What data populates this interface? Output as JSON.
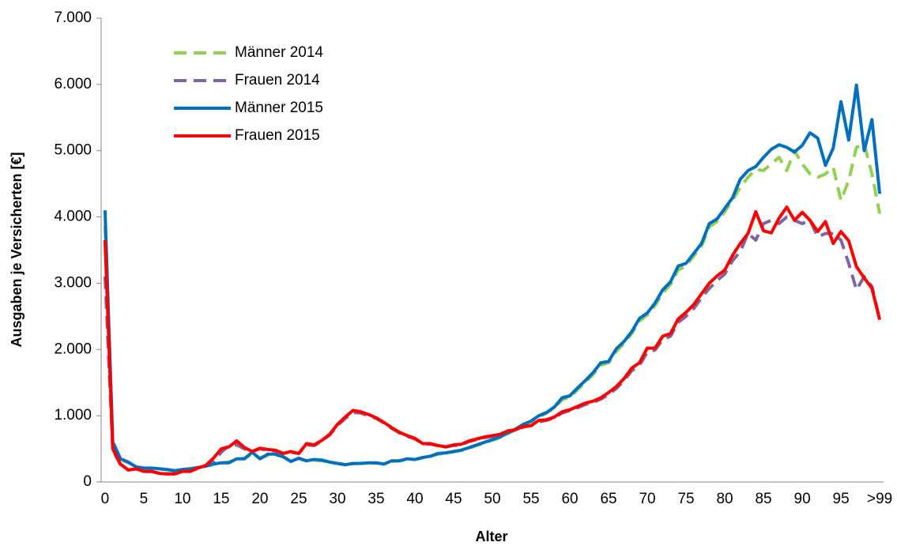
{
  "chart_data": {
    "type": "line",
    "x_label": "Alter",
    "y_label": "Ausgaben je Versicherten [€]",
    "categories": [
      "0",
      null,
      null,
      null,
      null,
      "5",
      null,
      null,
      null,
      null,
      "10",
      null,
      null,
      null,
      null,
      "15",
      null,
      null,
      null,
      null,
      "20",
      null,
      null,
      null,
      null,
      "25",
      null,
      null,
      null,
      null,
      "30",
      null,
      null,
      null,
      null,
      "35",
      null,
      null,
      null,
      null,
      "40",
      null,
      null,
      null,
      null,
      "45",
      null,
      null,
      null,
      null,
      "50",
      null,
      null,
      null,
      null,
      "55",
      null,
      null,
      null,
      null,
      "60",
      null,
      null,
      null,
      null,
      "65",
      null,
      null,
      null,
      null,
      "70",
      null,
      null,
      null,
      null,
      "75",
      null,
      null,
      null,
      null,
      "80",
      null,
      null,
      null,
      null,
      "85",
      null,
      null,
      null,
      null,
      "90",
      null,
      null,
      null,
      null,
      "95",
      null,
      null,
      null,
      null,
      ">99"
    ],
    "ylim": [
      0,
      7000
    ],
    "yticks": [
      {
        "value": 0,
        "label": "0"
      },
      {
        "value": 1000,
        "label": "1.000"
      },
      {
        "value": 2000,
        "label": "2.000"
      },
      {
        "value": 3000,
        "label": "3.000"
      },
      {
        "value": 4000,
        "label": "4.000"
      },
      {
        "value": 5000,
        "label": "5.000"
      },
      {
        "value": 6000,
        "label": "6.000"
      },
      {
        "value": 7000,
        "label": "7.000"
      }
    ],
    "legend": "upper left",
    "series": [
      {
        "name": "Männer 2014",
        "color": "#92d050",
        "dash": true,
        "values": [
          3850,
          620,
          340,
          290,
          230,
          210,
          205,
          195,
          185,
          170,
          185,
          200,
          215,
          240,
          265,
          290,
          300,
          340,
          360,
          420,
          360,
          400,
          410,
          380,
          320,
          350,
          320,
          330,
          320,
          300,
          280,
          265,
          275,
          280,
          285,
          285,
          275,
          310,
          320,
          345,
          340,
          365,
          390,
          420,
          435,
          455,
          475,
          510,
          550,
          590,
          630,
          670,
          730,
          790,
          860,
          910,
          980,
          1040,
          1120,
          1240,
          1280,
          1390,
          1500,
          1620,
          1760,
          1800,
          1970,
          2090,
          2240,
          2430,
          2520,
          2660,
          2850,
          2980,
          3200,
          3260,
          3410,
          3560,
          3850,
          3930,
          4080,
          4250,
          4450,
          4600,
          4720,
          4700,
          4800,
          4900,
          4700,
          5000,
          4800,
          4650,
          4600,
          4650,
          4750,
          4250,
          4550,
          5050,
          5100,
          4650,
          4050
        ]
      },
      {
        "name": "Frauen 2014",
        "color": "#8064a2",
        "dash": true,
        "values": [
          3100,
          480,
          260,
          180,
          195,
          160,
          160,
          135,
          125,
          125,
          160,
          165,
          205,
          240,
          300,
          450,
          550,
          560,
          500,
          460,
          500,
          480,
          470,
          430,
          450,
          430,
          560,
          550,
          620,
          710,
          850,
          960,
          1050,
          1040,
          1000,
          960,
          890,
          810,
          740,
          690,
          650,
          580,
          570,
          550,
          530,
          550,
          560,
          610,
          640,
          670,
          690,
          710,
          760,
          780,
          830,
          850,
          910,
          930,
          970,
          1040,
          1080,
          1120,
          1170,
          1200,
          1250,
          1320,
          1410,
          1530,
          1680,
          1760,
          1960,
          1990,
          2150,
          2200,
          2410,
          2500,
          2620,
          2780,
          2920,
          3040,
          3140,
          3340,
          3480,
          3750,
          3650,
          3900,
          3950,
          3900,
          4000,
          3950,
          3900,
          3950,
          3700,
          3750,
          3750,
          3650,
          3300,
          2900,
          3100,
          2950,
          2450
        ]
      },
      {
        "name": "Männer 2015",
        "color": "#0070c0",
        "dash": false,
        "values": [
          4100,
          600,
          350,
          300,
          230,
          210,
          210,
          200,
          190,
          170,
          190,
          200,
          220,
          240,
          270,
          290,
          290,
          350,
          350,
          450,
          350,
          420,
          420,
          380,
          310,
          360,
          320,
          340,
          330,
          300,
          280,
          260,
          280,
          280,
          290,
          290,
          270,
          320,
          320,
          350,
          340,
          370,
          390,
          430,
          440,
          460,
          480,
          520,
          560,
          600,
          640,
          680,
          740,
          800,
          870,
          920,
          1000,
          1050,
          1130,
          1270,
          1300,
          1420,
          1530,
          1650,
          1800,
          1820,
          2010,
          2120,
          2270,
          2470,
          2550,
          2700,
          2900,
          3020,
          3260,
          3300,
          3450,
          3600,
          3900,
          3970,
          4130,
          4290,
          4570,
          4700,
          4760,
          4900,
          5020,
          5090,
          5050,
          4980,
          5080,
          5270,
          5190,
          4780,
          5040,
          5740,
          5160,
          5990,
          5000,
          5470,
          4350
        ]
      },
      {
        "name": "Frauen 2015",
        "color": "#ff0000",
        "dash": false,
        "values": [
          3650,
          500,
          270,
          180,
          200,
          160,
          160,
          130,
          120,
          120,
          160,
          160,
          210,
          250,
          360,
          500,
          530,
          620,
          520,
          460,
          510,
          490,
          480,
          430,
          460,
          430,
          580,
          560,
          630,
          720,
          870,
          980,
          1080,
          1060,
          1020,
          970,
          900,
          820,
          750,
          700,
          660,
          580,
          580,
          550,
          530,
          560,
          570,
          620,
          650,
          680,
          700,
          720,
          770,
          790,
          840,
          850,
          930,
          940,
          980,
          1060,
          1090,
          1140,
          1190,
          1220,
          1270,
          1350,
          1440,
          1560,
          1720,
          1800,
          2020,
          2020,
          2200,
          2240,
          2460,
          2560,
          2680,
          2840,
          3000,
          3110,
          3200,
          3420,
          3600,
          3750,
          4080,
          3790,
          3760,
          3980,
          4150,
          3950,
          4070,
          3950,
          3780,
          3930,
          3600,
          3780,
          3640,
          3250,
          3080,
          2920,
          2450
        ]
      }
    ]
  }
}
